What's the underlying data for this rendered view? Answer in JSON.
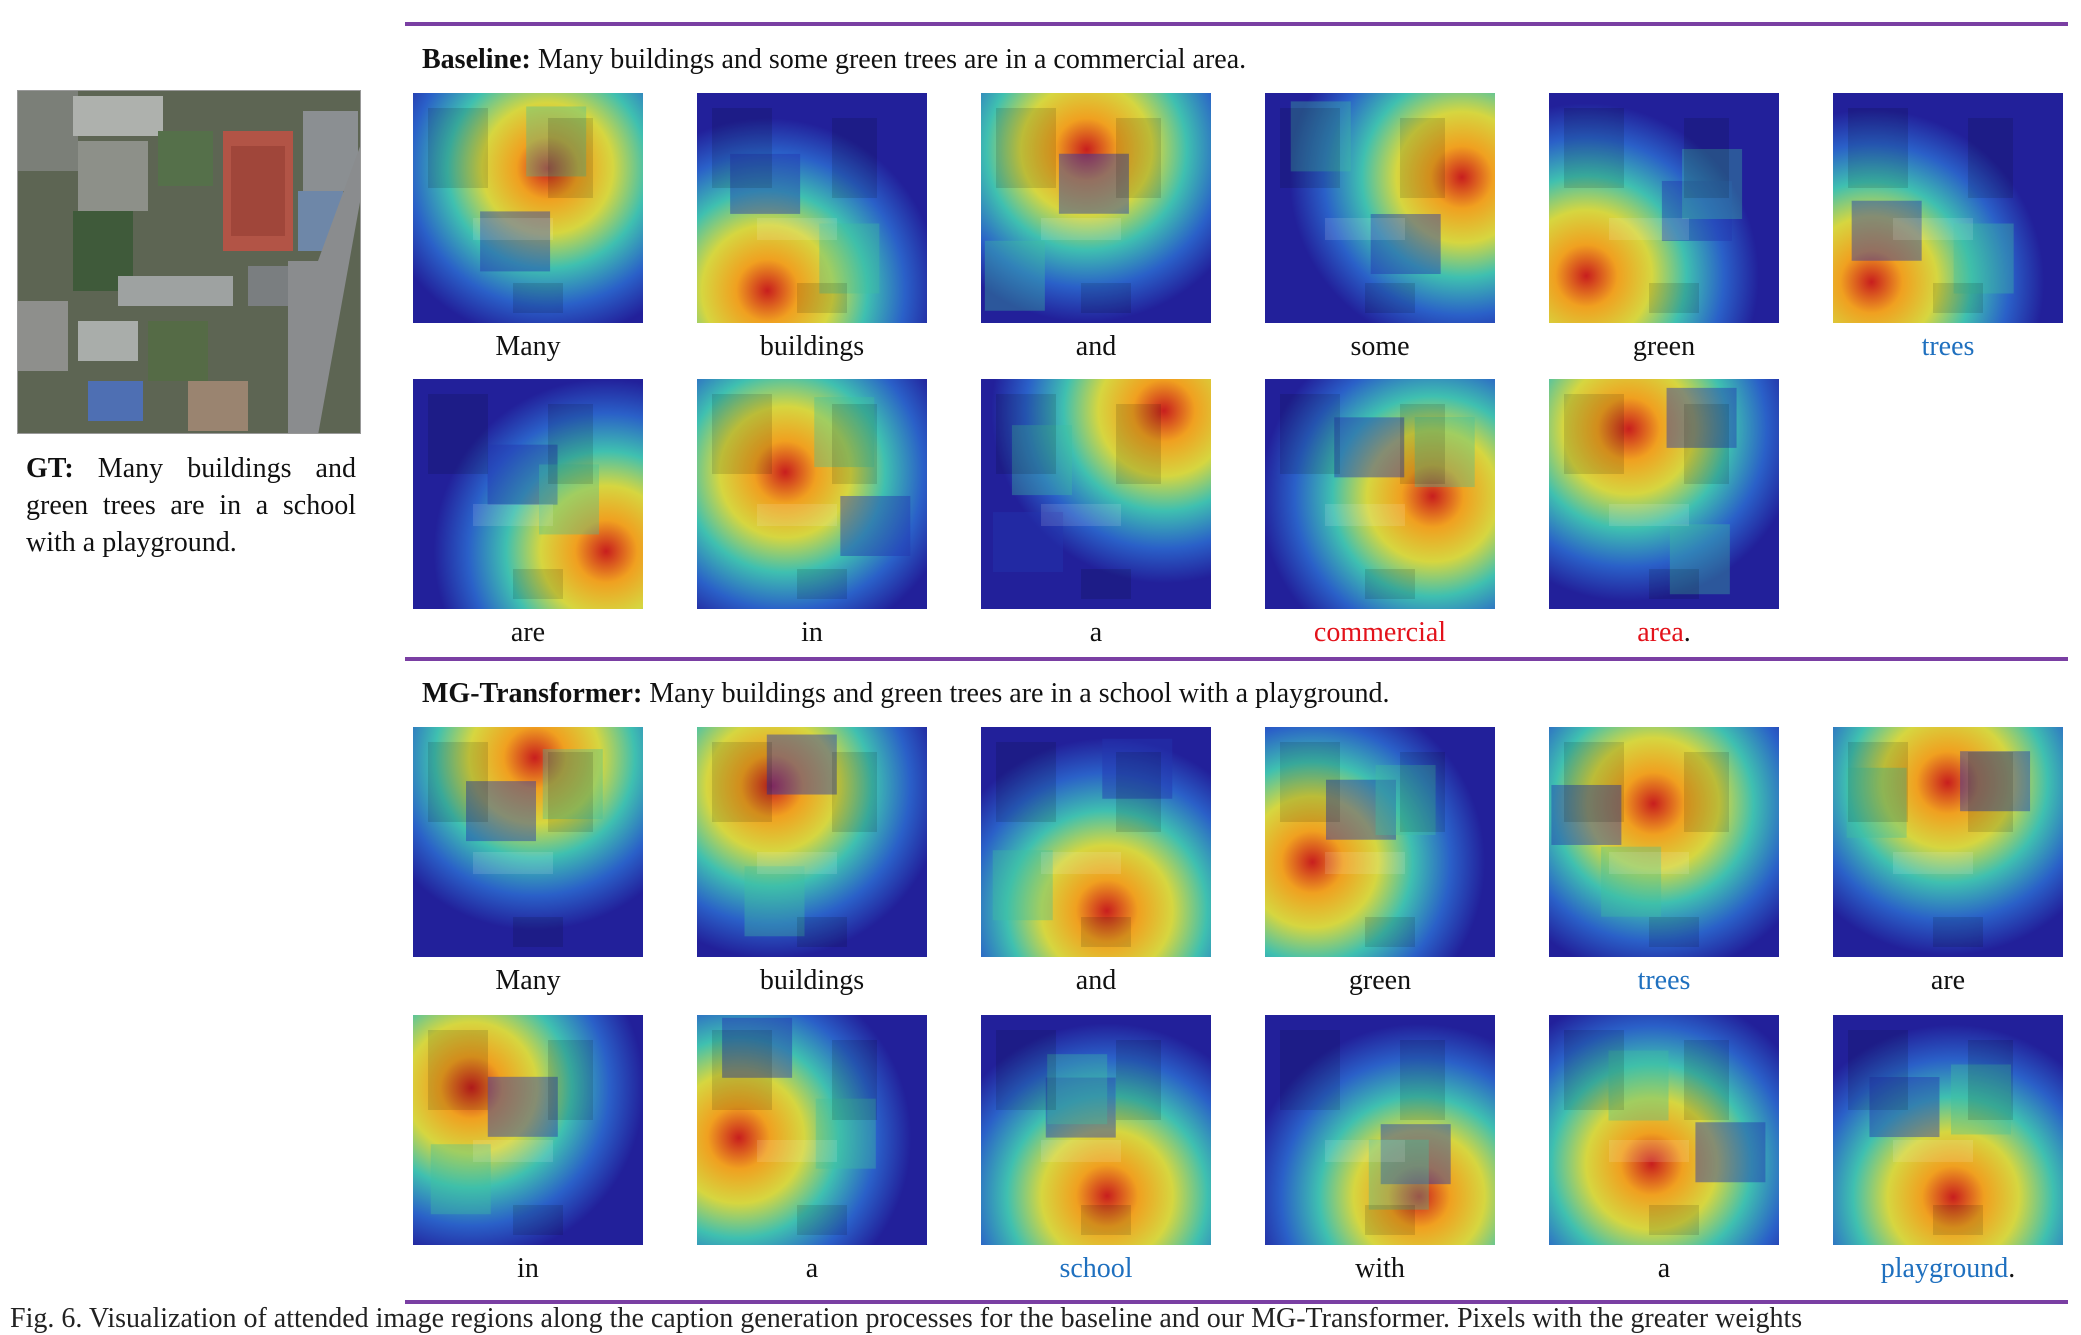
{
  "gt": {
    "label": "GT:",
    "text": " Many buildings and green trees are in a school with a playground."
  },
  "baseline": {
    "label": "Baseline:",
    "text": " Many buildings and some green trees are in a commercial area.",
    "words": [
      {
        "word": "Many",
        "suffix": "",
        "color": "black"
      },
      {
        "word": "buildings",
        "suffix": "",
        "color": "black"
      },
      {
        "word": "and",
        "suffix": "",
        "color": "black"
      },
      {
        "word": "some",
        "suffix": "",
        "color": "black"
      },
      {
        "word": "green",
        "suffix": "",
        "color": "black"
      },
      {
        "word": "trees",
        "suffix": "",
        "color": "blue"
      },
      {
        "word": "are",
        "suffix": "",
        "color": "black"
      },
      {
        "word": "in",
        "suffix": "",
        "color": "black"
      },
      {
        "word": "a",
        "suffix": "",
        "color": "black"
      },
      {
        "word": "commercial",
        "suffix": "",
        "color": "red"
      },
      {
        "word": "area",
        "suffix": ".",
        "color": "red"
      }
    ]
  },
  "mg_transformer": {
    "label": "MG-Transformer:",
    "text": " Many buildings and green trees are in a school with a playground.",
    "words": [
      {
        "word": "Many",
        "suffix": "",
        "color": "black"
      },
      {
        "word": "buildings",
        "suffix": "",
        "color": "black"
      },
      {
        "word": "and",
        "suffix": "",
        "color": "black"
      },
      {
        "word": "green",
        "suffix": "",
        "color": "black"
      },
      {
        "word": "trees",
        "suffix": "",
        "color": "blue"
      },
      {
        "word": "are",
        "suffix": "",
        "color": "black"
      },
      {
        "word": "in",
        "suffix": "",
        "color": "black"
      },
      {
        "word": "a",
        "suffix": "",
        "color": "black"
      },
      {
        "word": "school",
        "suffix": "",
        "color": "blue"
      },
      {
        "word": "with",
        "suffix": "",
        "color": "black"
      },
      {
        "word": "a",
        "suffix": "",
        "color": "black"
      },
      {
        "word": "playground",
        "suffix": ".",
        "color": "blue"
      }
    ]
  },
  "figure_caption": "Fig. 6.  Visualization of attended image regions along the caption generation processes for the baseline and our MG-Transformer. Pixels with the greater weights",
  "colors": {
    "rule": "#7a3fa3",
    "highlight_blue": "#1f70bf",
    "highlight_red": "#e3121b"
  }
}
